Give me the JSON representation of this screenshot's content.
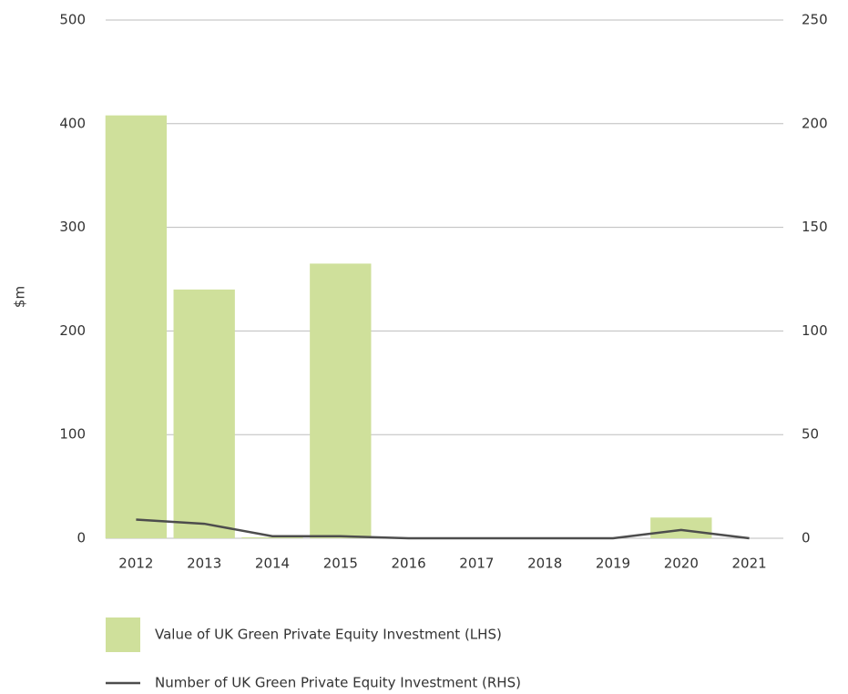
{
  "chart_data": {
    "type": "bar",
    "y_label": "$m",
    "categories": [
      "2012",
      "2013",
      "2014",
      "2015",
      "2016",
      "2017",
      "2018",
      "2019",
      "2020",
      "2021"
    ],
    "series": [
      {
        "name": "Value of UK Green Private Equity Investment (LHS)",
        "type": "bar",
        "color": "#cfe09b",
        "values": [
          408,
          240,
          1,
          265,
          0,
          0,
          0,
          0,
          20,
          0
        ]
      },
      {
        "name": "Number of UK Green Private Equity Investment (RHS)",
        "type": "line",
        "axis": "y2",
        "color": "#4d4d4d",
        "values": [
          9,
          7,
          1,
          1,
          0,
          0,
          0,
          0,
          4,
          0
        ]
      }
    ],
    "ylim": [
      0,
      500
    ],
    "yticks": [
      0,
      100,
      200,
      300,
      400,
      500
    ],
    "y2lim": [
      0,
      250
    ],
    "y2ticks": [
      0,
      50,
      100,
      150,
      200,
      250
    ],
    "grid": true
  }
}
